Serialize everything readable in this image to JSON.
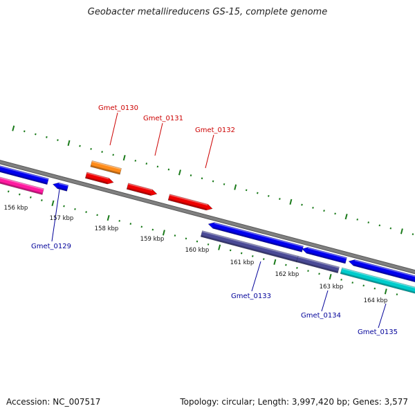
{
  "title": "Geobacter metallireducens GS-15, complete genome",
  "footer": {
    "accession": "Accession: NC_007517",
    "summary": "Topology: circular; Length: 3,997,420 bp; Genes: 3,577"
  },
  "colors": {
    "backbone": "#808080",
    "ticks": "#1a7a1a",
    "forward_label": "#cc0000",
    "reverse_label": "#000099",
    "red": "#ee0000",
    "orange": "#ff8c1a",
    "blue": "#0000ee",
    "pink": "#ff1aa0",
    "purple": "#4a4a96",
    "cyan": "#00cccc"
  },
  "scale_labels": [
    "156 kbp",
    "157 kbp",
    "158 kbp",
    "159 kbp",
    "160 kbp",
    "161 kbp",
    "162 kbp",
    "163 kbp",
    "164 kbp"
  ],
  "forward_genes": [
    {
      "label": "Gmet_0130",
      "color_key": "orange"
    },
    {
      "label": "Gmet_0131",
      "color_key": "red"
    },
    {
      "label": "Gmet_0132",
      "color_key": "red"
    }
  ],
  "reverse_genes": [
    {
      "label": "Gmet_0129",
      "color_key": "blue"
    },
    {
      "label": "Gmet_0133",
      "color_key": "purple"
    },
    {
      "label": "Gmet_0134",
      "color_key": "purple"
    },
    {
      "label": "Gmet_0135",
      "color_key": "cyan"
    }
  ]
}
